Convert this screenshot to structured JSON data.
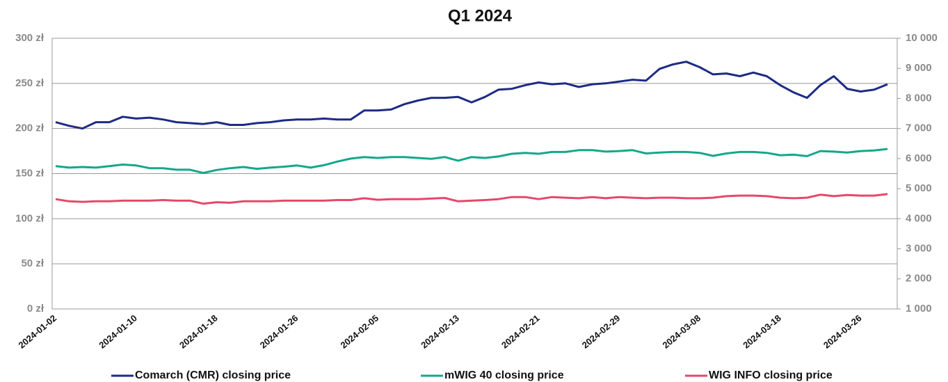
{
  "chart_data": {
    "type": "line",
    "title": "Q1 2024",
    "categories": [
      "2024-01-02",
      null,
      null,
      null,
      null,
      null,
      "2024-01-10",
      null,
      null,
      null,
      null,
      null,
      "2024-01-18",
      null,
      null,
      null,
      null,
      null,
      "2024-01-26",
      null,
      null,
      null,
      null,
      null,
      "2024-02-05",
      null,
      null,
      null,
      null,
      null,
      "2024-02-13",
      null,
      null,
      null,
      null,
      null,
      "2024-02-21",
      null,
      null,
      null,
      null,
      null,
      "2024-02-29",
      null,
      null,
      null,
      null,
      null,
      "2024-03-08",
      null,
      null,
      null,
      null,
      null,
      "2024-03-18",
      null,
      null,
      null,
      null,
      null,
      "2024-03-26",
      null,
      null
    ],
    "series": [
      {
        "name": "Comarch (CMR) closing price",
        "color": "#1d2b84",
        "values": [
          207,
          203,
          200,
          207,
          207,
          213,
          211,
          212,
          210,
          207,
          206,
          205,
          207,
          204,
          204,
          206,
          207,
          209,
          210,
          210,
          211,
          210,
          210,
          220,
          220,
          221,
          227,
          231,
          234,
          234,
          235,
          229,
          235,
          243,
          244,
          248,
          251,
          249,
          250,
          246,
          249,
          250,
          252,
          254,
          253,
          266,
          271,
          274,
          268,
          260,
          261,
          258,
          262,
          258,
          248,
          240,
          234,
          248,
          258,
          244,
          241,
          243,
          249
        ]
      },
      {
        "name": "mWIG 40 closing price",
        "color": "#13a88a",
        "axis": "y2",
        "values": [
          5750,
          5700,
          5720,
          5700,
          5750,
          5800,
          5770,
          5680,
          5680,
          5630,
          5630,
          5520,
          5620,
          5680,
          5720,
          5660,
          5700,
          5730,
          5770,
          5700,
          5780,
          5900,
          6000,
          6050,
          6020,
          6050,
          6050,
          6020,
          5990,
          6050,
          5930,
          6050,
          6020,
          6070,
          6160,
          6190,
          6160,
          6220,
          6220,
          6280,
          6280,
          6230,
          6250,
          6280,
          6170,
          6200,
          6220,
          6220,
          6190,
          6090,
          6170,
          6220,
          6220,
          6190,
          6110,
          6130,
          6080,
          6250,
          6230,
          6200,
          6250,
          6270,
          6320
        ]
      },
      {
        "name": "WIG INFO closing price",
        "color": "#e5486a",
        "axis": "y2",
        "values": [
          4650,
          4580,
          4560,
          4580,
          4580,
          4600,
          4600,
          4600,
          4620,
          4600,
          4600,
          4500,
          4550,
          4530,
          4580,
          4580,
          4580,
          4600,
          4600,
          4600,
          4600,
          4620,
          4620,
          4680,
          4630,
          4650,
          4650,
          4650,
          4670,
          4690,
          4580,
          4600,
          4620,
          4650,
          4720,
          4720,
          4650,
          4720,
          4700,
          4680,
          4720,
          4680,
          4720,
          4700,
          4680,
          4700,
          4700,
          4680,
          4680,
          4700,
          4750,
          4770,
          4770,
          4750,
          4700,
          4680,
          4700,
          4800,
          4750,
          4790,
          4770,
          4770,
          4820
        ]
      }
    ],
    "ylim": [
      0,
      300
    ],
    "yticks": [
      {
        "value": 0,
        "label": "0 zł"
      },
      {
        "value": 50,
        "label": "50 zł"
      },
      {
        "value": 100,
        "label": "100 zł"
      },
      {
        "value": 150,
        "label": "150 zł"
      },
      {
        "value": 200,
        "label": "200 zł"
      },
      {
        "value": 250,
        "label": "250 zł"
      },
      {
        "value": 300,
        "label": "300 zł"
      }
    ],
    "y2lim": [
      1000,
      10000
    ],
    "y2ticks": [
      {
        "value": 1000,
        "label": "1 000"
      },
      {
        "value": 2000,
        "label": "2 000"
      },
      {
        "value": 3000,
        "label": "3 000"
      },
      {
        "value": 4000,
        "label": "4 000"
      },
      {
        "value": 5000,
        "label": "5 000"
      },
      {
        "value": 6000,
        "label": "6 000"
      },
      {
        "value": 7000,
        "label": "7 000"
      },
      {
        "value": 8000,
        "label": "8 000"
      },
      {
        "value": 9000,
        "label": "9 000"
      },
      {
        "value": 10000,
        "label": "10 000"
      }
    ],
    "grid": true,
    "legend": "bottom"
  }
}
